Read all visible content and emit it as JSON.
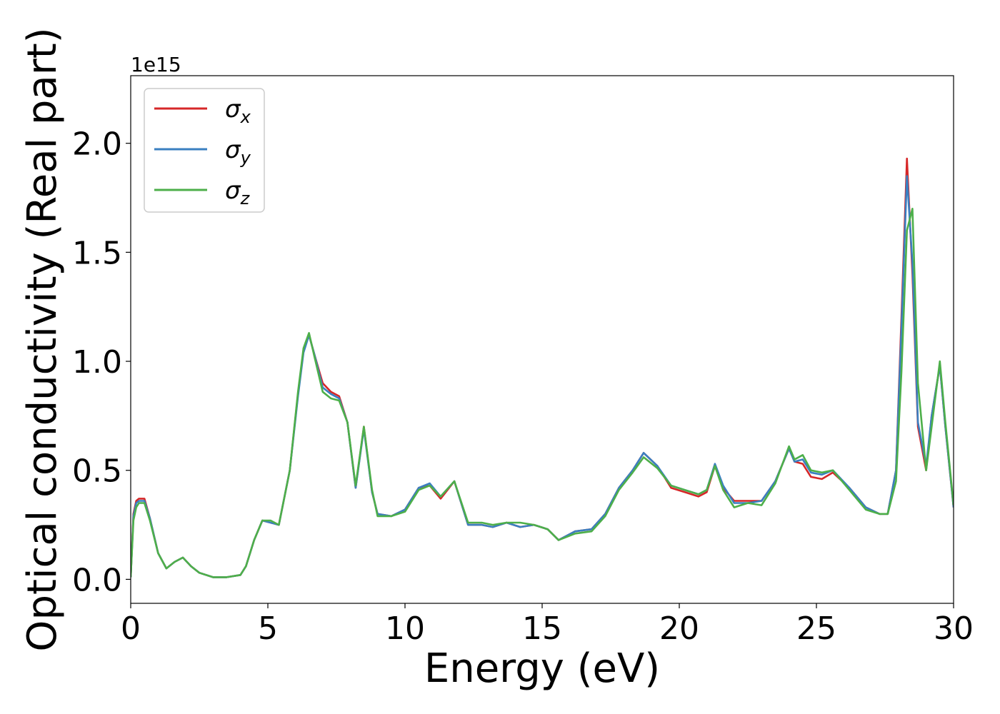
{
  "chart_data": {
    "type": "line",
    "xlabel": "Energy (eV)",
    "ylabel": "Optical conductivity (Real part)",
    "y_offset_label": "1e15",
    "xlim": [
      0,
      30
    ],
    "ylim": [
      -0.11,
      2.31
    ],
    "x_ticks": [
      0,
      5,
      10,
      15,
      20,
      25,
      30
    ],
    "x_tick_labels": [
      "0",
      "5",
      "10",
      "15",
      "20",
      "25",
      "30"
    ],
    "y_ticks": [
      0.0,
      0.5,
      1.0,
      1.5,
      2.0
    ],
    "y_tick_labels": [
      "0.0",
      "0.5",
      "1.0",
      "1.5",
      "2.0"
    ],
    "grid": false,
    "legend_position": "top-left",
    "series": [
      {
        "name": "σx",
        "legend_base": "σ",
        "legend_sub": "x",
        "color": "#d62728",
        "x": [
          0,
          0.1,
          0.2,
          0.3,
          0.5,
          0.7,
          1.0,
          1.3,
          1.6,
          1.9,
          2.2,
          2.5,
          3.0,
          3.5,
          4.0,
          4.2,
          4.5,
          4.8,
          5.1,
          5.4,
          5.8,
          6.1,
          6.3,
          6.5,
          6.7,
          7.0,
          7.3,
          7.6,
          7.9,
          8.2,
          8.5,
          8.8,
          9.0,
          9.5,
          10.0,
          10.5,
          10.9,
          11.3,
          11.8,
          12.3,
          12.8,
          13.2,
          13.7,
          14.2,
          14.7,
          15.2,
          15.6,
          16.2,
          16.8,
          17.3,
          17.8,
          18.3,
          18.7,
          19.2,
          19.7,
          20.2,
          20.7,
          21.0,
          21.3,
          21.6,
          22.0,
          22.5,
          23.0,
          23.5,
          24.0,
          24.2,
          24.5,
          24.8,
          25.2,
          25.6,
          26.2,
          26.8,
          27.3,
          27.6,
          27.9,
          28.1,
          28.3,
          28.5,
          28.7,
          29.0,
          29.2,
          29.5,
          29.7,
          30.0
        ],
        "values": [
          0.01,
          0.3,
          0.36,
          0.37,
          0.37,
          0.28,
          0.12,
          0.05,
          0.08,
          0.1,
          0.06,
          0.03,
          0.01,
          0.01,
          0.02,
          0.06,
          0.18,
          0.27,
          0.26,
          0.25,
          0.5,
          0.85,
          1.05,
          1.12,
          1.03,
          0.9,
          0.86,
          0.84,
          0.72,
          0.42,
          0.7,
          0.4,
          0.3,
          0.29,
          0.32,
          0.42,
          0.43,
          0.37,
          0.45,
          0.25,
          0.25,
          0.24,
          0.26,
          0.24,
          0.25,
          0.23,
          0.18,
          0.22,
          0.23,
          0.3,
          0.42,
          0.5,
          0.58,
          0.52,
          0.42,
          0.4,
          0.38,
          0.4,
          0.52,
          0.42,
          0.36,
          0.36,
          0.36,
          0.45,
          0.6,
          0.54,
          0.53,
          0.47,
          0.46,
          0.49,
          0.42,
          0.33,
          0.3,
          0.3,
          0.5,
          1.2,
          1.93,
          1.4,
          0.7,
          0.5,
          0.75,
          0.98,
          0.7,
          0.33
        ]
      },
      {
        "name": "σy",
        "legend_base": "σ",
        "legend_sub": "y",
        "color": "#3a7fc1",
        "x": [
          0,
          0.1,
          0.2,
          0.3,
          0.5,
          0.7,
          1.0,
          1.3,
          1.6,
          1.9,
          2.2,
          2.5,
          3.0,
          3.5,
          4.0,
          4.2,
          4.5,
          4.8,
          5.1,
          5.4,
          5.8,
          6.1,
          6.3,
          6.5,
          6.7,
          7.0,
          7.3,
          7.6,
          7.9,
          8.2,
          8.5,
          8.8,
          9.0,
          9.5,
          10.0,
          10.5,
          10.9,
          11.3,
          11.8,
          12.3,
          12.8,
          13.2,
          13.7,
          14.2,
          14.7,
          15.2,
          15.6,
          16.2,
          16.8,
          17.3,
          17.8,
          18.3,
          18.7,
          19.2,
          19.7,
          20.2,
          20.7,
          21.0,
          21.3,
          21.6,
          22.0,
          22.5,
          23.0,
          23.5,
          24.0,
          24.2,
          24.5,
          24.8,
          25.2,
          25.6,
          26.2,
          26.8,
          27.3,
          27.6,
          27.9,
          28.1,
          28.3,
          28.5,
          28.7,
          29.0,
          29.2,
          29.5,
          29.7,
          30.0
        ],
        "values": [
          0.01,
          0.29,
          0.35,
          0.36,
          0.36,
          0.28,
          0.12,
          0.05,
          0.08,
          0.1,
          0.06,
          0.03,
          0.01,
          0.01,
          0.02,
          0.06,
          0.18,
          0.27,
          0.26,
          0.25,
          0.5,
          0.84,
          1.04,
          1.12,
          1.03,
          0.88,
          0.85,
          0.83,
          0.72,
          0.42,
          0.69,
          0.4,
          0.3,
          0.29,
          0.32,
          0.42,
          0.44,
          0.38,
          0.45,
          0.25,
          0.25,
          0.24,
          0.26,
          0.24,
          0.25,
          0.23,
          0.18,
          0.22,
          0.23,
          0.3,
          0.42,
          0.5,
          0.58,
          0.52,
          0.43,
          0.41,
          0.39,
          0.41,
          0.53,
          0.43,
          0.35,
          0.35,
          0.36,
          0.45,
          0.6,
          0.54,
          0.55,
          0.49,
          0.48,
          0.5,
          0.42,
          0.33,
          0.3,
          0.3,
          0.5,
          1.15,
          1.85,
          1.45,
          0.72,
          0.52,
          0.75,
          0.98,
          0.7,
          0.33
        ]
      },
      {
        "name": "σz",
        "legend_base": "σ",
        "legend_sub": "z",
        "color": "#4daf4a",
        "x": [
          0,
          0.1,
          0.2,
          0.3,
          0.5,
          0.7,
          1.0,
          1.3,
          1.6,
          1.9,
          2.2,
          2.5,
          3.0,
          3.5,
          4.0,
          4.2,
          4.5,
          4.8,
          5.1,
          5.4,
          5.8,
          6.1,
          6.3,
          6.5,
          6.7,
          7.0,
          7.3,
          7.6,
          7.9,
          8.2,
          8.5,
          8.8,
          9.0,
          9.5,
          10.0,
          10.5,
          10.9,
          11.3,
          11.8,
          12.3,
          12.8,
          13.2,
          13.7,
          14.2,
          14.7,
          15.2,
          15.6,
          16.2,
          16.8,
          17.3,
          17.8,
          18.3,
          18.7,
          19.2,
          19.7,
          20.2,
          20.7,
          21.0,
          21.3,
          21.6,
          22.0,
          22.5,
          23.0,
          23.5,
          24.0,
          24.2,
          24.5,
          24.8,
          25.2,
          25.6,
          26.2,
          26.8,
          27.3,
          27.6,
          27.9,
          28.1,
          28.3,
          28.5,
          28.7,
          29.0,
          29.2,
          29.5,
          29.7,
          30.0
        ],
        "values": [
          0.01,
          0.27,
          0.33,
          0.35,
          0.35,
          0.27,
          0.12,
          0.05,
          0.08,
          0.1,
          0.06,
          0.03,
          0.01,
          0.01,
          0.02,
          0.06,
          0.18,
          0.27,
          0.27,
          0.25,
          0.5,
          0.86,
          1.06,
          1.13,
          1.02,
          0.86,
          0.83,
          0.82,
          0.72,
          0.43,
          0.7,
          0.41,
          0.29,
          0.29,
          0.31,
          0.41,
          0.43,
          0.38,
          0.45,
          0.26,
          0.26,
          0.25,
          0.26,
          0.26,
          0.25,
          0.23,
          0.18,
          0.21,
          0.22,
          0.29,
          0.41,
          0.49,
          0.56,
          0.51,
          0.43,
          0.41,
          0.39,
          0.41,
          0.52,
          0.41,
          0.33,
          0.35,
          0.34,
          0.44,
          0.61,
          0.55,
          0.57,
          0.5,
          0.49,
          0.5,
          0.41,
          0.32,
          0.3,
          0.3,
          0.45,
          0.95,
          1.6,
          1.7,
          0.9,
          0.5,
          0.7,
          1.0,
          0.72,
          0.34
        ]
      }
    ]
  }
}
